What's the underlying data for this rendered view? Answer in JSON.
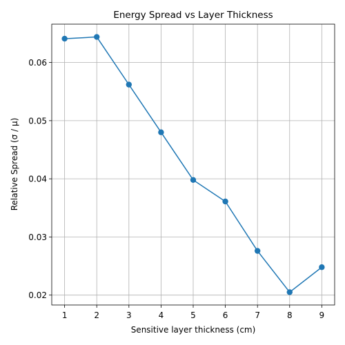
{
  "chart_data": {
    "type": "line",
    "title": "Energy Spread vs Layer Thickness",
    "xlabel": "Sensitive layer thickness (cm)",
    "ylabel": "Relative Spread (σ / μ)",
    "x": [
      1,
      2,
      3,
      4,
      5,
      6,
      7,
      8,
      9
    ],
    "series": [
      {
        "values": [
          0.0641,
          0.0644,
          0.0562,
          0.048,
          0.0398,
          0.0361,
          0.0276,
          0.0205,
          0.0248
        ]
      }
    ],
    "xticks": [
      1,
      2,
      3,
      4,
      5,
      6,
      7,
      8,
      9
    ],
    "xtick_labels": [
      "1",
      "2",
      "3",
      "4",
      "5",
      "6",
      "7",
      "8",
      "9"
    ],
    "yticks": [
      0.02,
      0.03,
      0.04,
      0.05,
      0.06
    ],
    "ytick_labels": [
      "0.02",
      "0.03",
      "0.04",
      "0.05",
      "0.06"
    ],
    "xlim": [
      0.6,
      9.4
    ],
    "ylim": [
      0.0183,
      0.0666
    ],
    "grid": true,
    "marker": "circle",
    "color": "#1f77b4"
  }
}
